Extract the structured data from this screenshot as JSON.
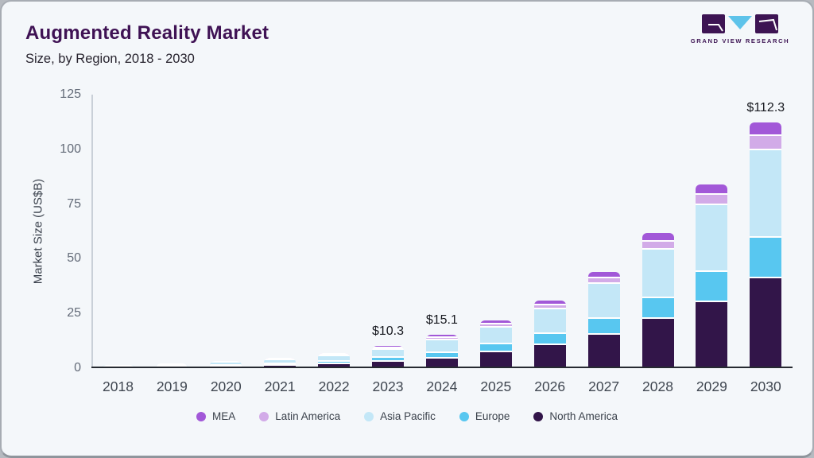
{
  "header": {
    "title": "Augmented Reality Market",
    "subtitle": "Size, by Region, 2018 - 2030"
  },
  "logo": {
    "text": "GRAND VIEW RESEARCH",
    "brand_dark": "#3d1453",
    "brand_blue": "#5ec3ea"
  },
  "chart_data": {
    "type": "bar",
    "stacked": true,
    "title": "Augmented Reality Market",
    "subtitle": "Size, by Region, 2018 - 2030",
    "ylabel": "Market Size (US$B)",
    "xlabel": "",
    "ylim": [
      0,
      125
    ],
    "yticks": [
      0,
      25,
      50,
      75,
      100,
      125
    ],
    "grid": false,
    "legend_position": "bottom",
    "categories": [
      "2018",
      "2019",
      "2020",
      "2021",
      "2022",
      "2023",
      "2024",
      "2025",
      "2026",
      "2027",
      "2028",
      "2029",
      "2030"
    ],
    "series": [
      {
        "name": "North America",
        "color": "#321549",
        "values": [
          0.55,
          0.81,
          1.22,
          1.78,
          2.6,
          3.7,
          5.0,
          7.9,
          11.3,
          16.1,
          23.1,
          31.0,
          41.8
        ]
      },
      {
        "name": "Europe",
        "color": "#58c7f0",
        "values": [
          0.24,
          0.35,
          0.53,
          0.77,
          1.12,
          1.7,
          2.5,
          3.6,
          4.9,
          7.2,
          9.6,
          13.7,
          18.6
        ]
      },
      {
        "name": "Asia Pacific",
        "color": "#c3e7f7",
        "values": [
          0.54,
          0.79,
          1.18,
          1.72,
          2.51,
          3.7,
          6.0,
          7.9,
          11.3,
          16.0,
          22.3,
          30.6,
          39.9
        ]
      },
      {
        "name": "Latin America",
        "color": "#d2abe8",
        "values": [
          0.09,
          0.13,
          0.2,
          0.29,
          0.42,
          0.65,
          0.9,
          1.3,
          1.9,
          2.6,
          3.7,
          4.5,
          6.7
        ]
      },
      {
        "name": "MEA",
        "color": "#a258d8",
        "values": [
          0.08,
          0.12,
          0.17,
          0.24,
          0.35,
          0.55,
          0.7,
          1.1,
          1.6,
          2.1,
          3.2,
          4.0,
          5.3
        ]
      }
    ],
    "totals": [
      1.5,
      2.2,
      3.3,
      4.8,
      7.0,
      10.3,
      15.1,
      21.8,
      31.0,
      44.0,
      61.9,
      83.8,
      112.3
    ],
    "annotations": [
      {
        "category": "2023",
        "label": "$10.3"
      },
      {
        "category": "2024",
        "label": "$15.1"
      },
      {
        "category": "2030",
        "label": "$112.3"
      }
    ],
    "legend_order": [
      "MEA",
      "Latin America",
      "Asia Pacific",
      "Europe",
      "North America"
    ]
  }
}
